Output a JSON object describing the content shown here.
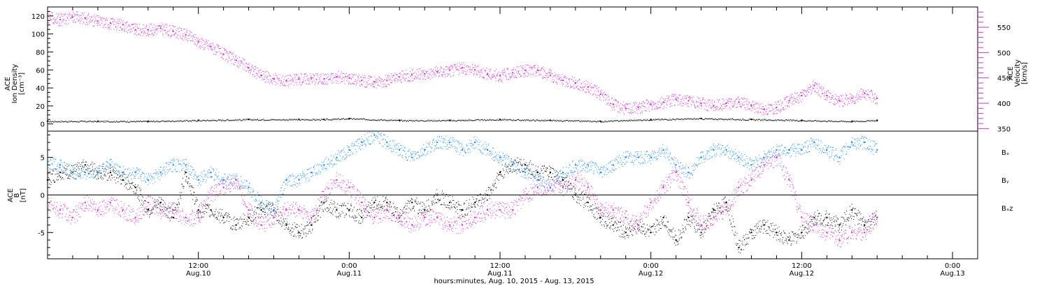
{
  "x_axis": {
    "ticks": [
      {
        "time": "12:00",
        "date": "Aug.10",
        "hours": 12
      },
      {
        "time": "0:00",
        "date": "Aug.11",
        "hours": 24
      },
      {
        "time": "12:00",
        "date": "Aug.11",
        "hours": 36
      },
      {
        "time": "0:00",
        "date": "Aug.12",
        "hours": 48
      },
      {
        "time": "12:00",
        "date": "Aug.12",
        "hours": 60
      },
      {
        "time": "0:00",
        "date": "Aug.13",
        "hours": 72
      }
    ],
    "title": "hours:minutes, Aug. 10, 2015 - Aug. 13, 2015"
  },
  "colors": {
    "density": "#000000",
    "velocity": "#cc33cc",
    "bx": "#000000",
    "by": "#1e88e5",
    "bz": "#cc33cc"
  },
  "chart_data": [
    {
      "type": "scatter",
      "panel": "top",
      "xlim": [
        0,
        74
      ],
      "left_axis": {
        "label_lines": [
          "ACE",
          "Ion Density",
          "[cm⁻³]"
        ],
        "ylim": [
          -8,
          130
        ],
        "ticks": [
          0,
          20,
          40,
          60,
          80,
          100,
          120
        ]
      },
      "right_axis": {
        "label_lines": [
          "ACE",
          "Velocity",
          "[km/s]"
        ],
        "ylim": [
          345,
          590
        ],
        "ticks": [
          350,
          400,
          450,
          500,
          550
        ]
      },
      "series": [
        {
          "role": "density",
          "axis": "left",
          "x": [
            0,
            4,
            8,
            12,
            16,
            20,
            22,
            24,
            28,
            32,
            36,
            40,
            44,
            48,
            52,
            56,
            60,
            64,
            66
          ],
          "y": [
            3,
            3,
            3,
            4,
            5,
            5,
            5,
            6,
            4,
            4,
            5,
            4,
            3,
            5,
            6,
            5,
            4,
            3,
            4
          ]
        },
        {
          "role": "velocity",
          "axis": "right",
          "x": [
            0,
            1,
            2,
            3,
            4,
            5,
            6,
            7,
            8,
            9,
            10,
            11,
            12,
            13,
            14,
            15,
            16,
            17,
            18,
            19,
            20,
            21,
            22,
            23,
            24,
            25,
            26,
            27,
            28,
            29,
            30,
            31,
            32,
            33,
            34,
            35,
            36,
            37,
            38,
            39,
            40,
            41,
            42,
            43,
            44,
            45,
            46,
            47,
            48,
            49,
            50,
            51,
            52,
            53,
            54,
            55,
            56,
            57,
            58,
            59,
            60,
            61,
            62,
            63,
            64,
            65,
            66
          ],
          "y": [
            570,
            565,
            570,
            568,
            562,
            558,
            555,
            545,
            545,
            548,
            542,
            535,
            522,
            512,
            497,
            485,
            470,
            455,
            448,
            445,
            448,
            450,
            448,
            452,
            450,
            445,
            442,
            445,
            452,
            456,
            458,
            462,
            465,
            470,
            466,
            458,
            455,
            460,
            465,
            465,
            455,
            445,
            440,
            432,
            418,
            398,
            390,
            392,
            397,
            402,
            408,
            405,
            400,
            395,
            400,
            402,
            395,
            388,
            392,
            405,
            415,
            435,
            415,
            405,
            410,
            420,
            410
          ]
        }
      ]
    },
    {
      "type": "scatter",
      "panel": "bottom",
      "xlim": [
        0,
        74
      ],
      "left_axis": {
        "label_lines": [
          "ACE",
          "B",
          "[nT]"
        ],
        "ylim": [
          -8.5,
          8.5
        ],
        "ticks": [
          -5,
          0,
          5
        ]
      },
      "series": [
        {
          "name": "Bₓ",
          "x": [
            0,
            1,
            2,
            3,
            4,
            5,
            6,
            7,
            8,
            9,
            10,
            11,
            12,
            13,
            14,
            15,
            16,
            17,
            18,
            19,
            20,
            21,
            22,
            23,
            24,
            25,
            26,
            27,
            28,
            29,
            30,
            31,
            32,
            33,
            34,
            35,
            36,
            37,
            38,
            39,
            40,
            41,
            42,
            43,
            44,
            45,
            46,
            47,
            48,
            49,
            50,
            51,
            52,
            53,
            54,
            55,
            56,
            57,
            58,
            59,
            60,
            61,
            62,
            63,
            64,
            65,
            66
          ],
          "y": [
            2,
            3,
            3,
            4,
            3,
            3,
            2,
            1,
            -2,
            -1,
            -3,
            3,
            -2,
            -2,
            -3,
            -4,
            -3,
            -2,
            -2,
            -4,
            -5,
            -4,
            -1,
            -2,
            -2,
            -3,
            -1,
            -1,
            -3,
            -1,
            -2,
            0,
            -1,
            -2,
            -1,
            0,
            3,
            4,
            4,
            3,
            3,
            2,
            0,
            -1,
            -3,
            -4,
            -5,
            -4,
            -5,
            -3,
            -6,
            -3,
            -5,
            -2,
            -1,
            -7,
            -5,
            -4,
            -5,
            -6,
            -5,
            -3,
            -3,
            -4,
            -2,
            -4,
            -3
          ]
        },
        {
          "name": "Bᵧ",
          "x": [
            0,
            1,
            2,
            3,
            4,
            5,
            6,
            7,
            8,
            9,
            10,
            11,
            12,
            13,
            14,
            15,
            16,
            17,
            18,
            19,
            20,
            21,
            22,
            23,
            24,
            25,
            26,
            27,
            28,
            29,
            30,
            31,
            32,
            33,
            34,
            35,
            36,
            37,
            38,
            39,
            40,
            41,
            42,
            43,
            44,
            45,
            46,
            47,
            48,
            49,
            50,
            51,
            52,
            53,
            54,
            55,
            56,
            57,
            58,
            59,
            60,
            61,
            62,
            63,
            64,
            65,
            66
          ],
          "y": [
            4,
            4,
            3,
            3,
            3,
            4,
            3,
            3,
            2,
            3,
            4,
            4,
            2,
            3,
            2,
            2,
            1,
            -1,
            -2,
            2,
            2,
            3,
            4,
            5,
            6,
            7,
            8,
            7,
            6,
            5,
            6,
            7,
            7,
            6,
            7,
            6,
            5,
            4,
            3,
            2,
            1,
            3,
            4,
            4,
            3,
            4,
            5,
            5,
            5,
            6,
            4,
            3,
            5,
            6,
            6,
            5,
            4,
            5,
            6,
            6,
            6,
            7,
            6,
            5,
            7,
            7,
            6
          ]
        },
        {
          "name": "Bₓz",
          "x": [
            0,
            1,
            2,
            3,
            4,
            5,
            6,
            7,
            8,
            9,
            10,
            11,
            12,
            13,
            14,
            15,
            16,
            17,
            18,
            19,
            20,
            21,
            22,
            23,
            24,
            25,
            26,
            27,
            28,
            29,
            30,
            31,
            32,
            33,
            34,
            35,
            36,
            37,
            38,
            39,
            40,
            41,
            42,
            43,
            44,
            45,
            46,
            47,
            48,
            49,
            50,
            51,
            52,
            53,
            54,
            55,
            56,
            57,
            58,
            59,
            60,
            61,
            62,
            63,
            64,
            65,
            66
          ],
          "y": [
            -1,
            -2,
            -3,
            -1,
            -2,
            -1,
            -2,
            -3,
            -1,
            -2,
            -2,
            -3,
            -3,
            0,
            1,
            2,
            -2,
            -4,
            -3,
            -2,
            -2,
            -3,
            0,
            2,
            1,
            -1,
            -3,
            -2,
            -3,
            -4,
            -3,
            -3,
            -4,
            -4,
            -3,
            -2,
            -2,
            -2,
            0,
            1,
            1,
            1,
            2,
            1,
            -2,
            -2,
            -3,
            -4,
            -1,
            1,
            3,
            -1,
            -4,
            -3,
            -2,
            1,
            2,
            4,
            5,
            2,
            -3,
            -4,
            -5,
            -6,
            -5,
            -5,
            -3
          ]
        }
      ]
    }
  ]
}
